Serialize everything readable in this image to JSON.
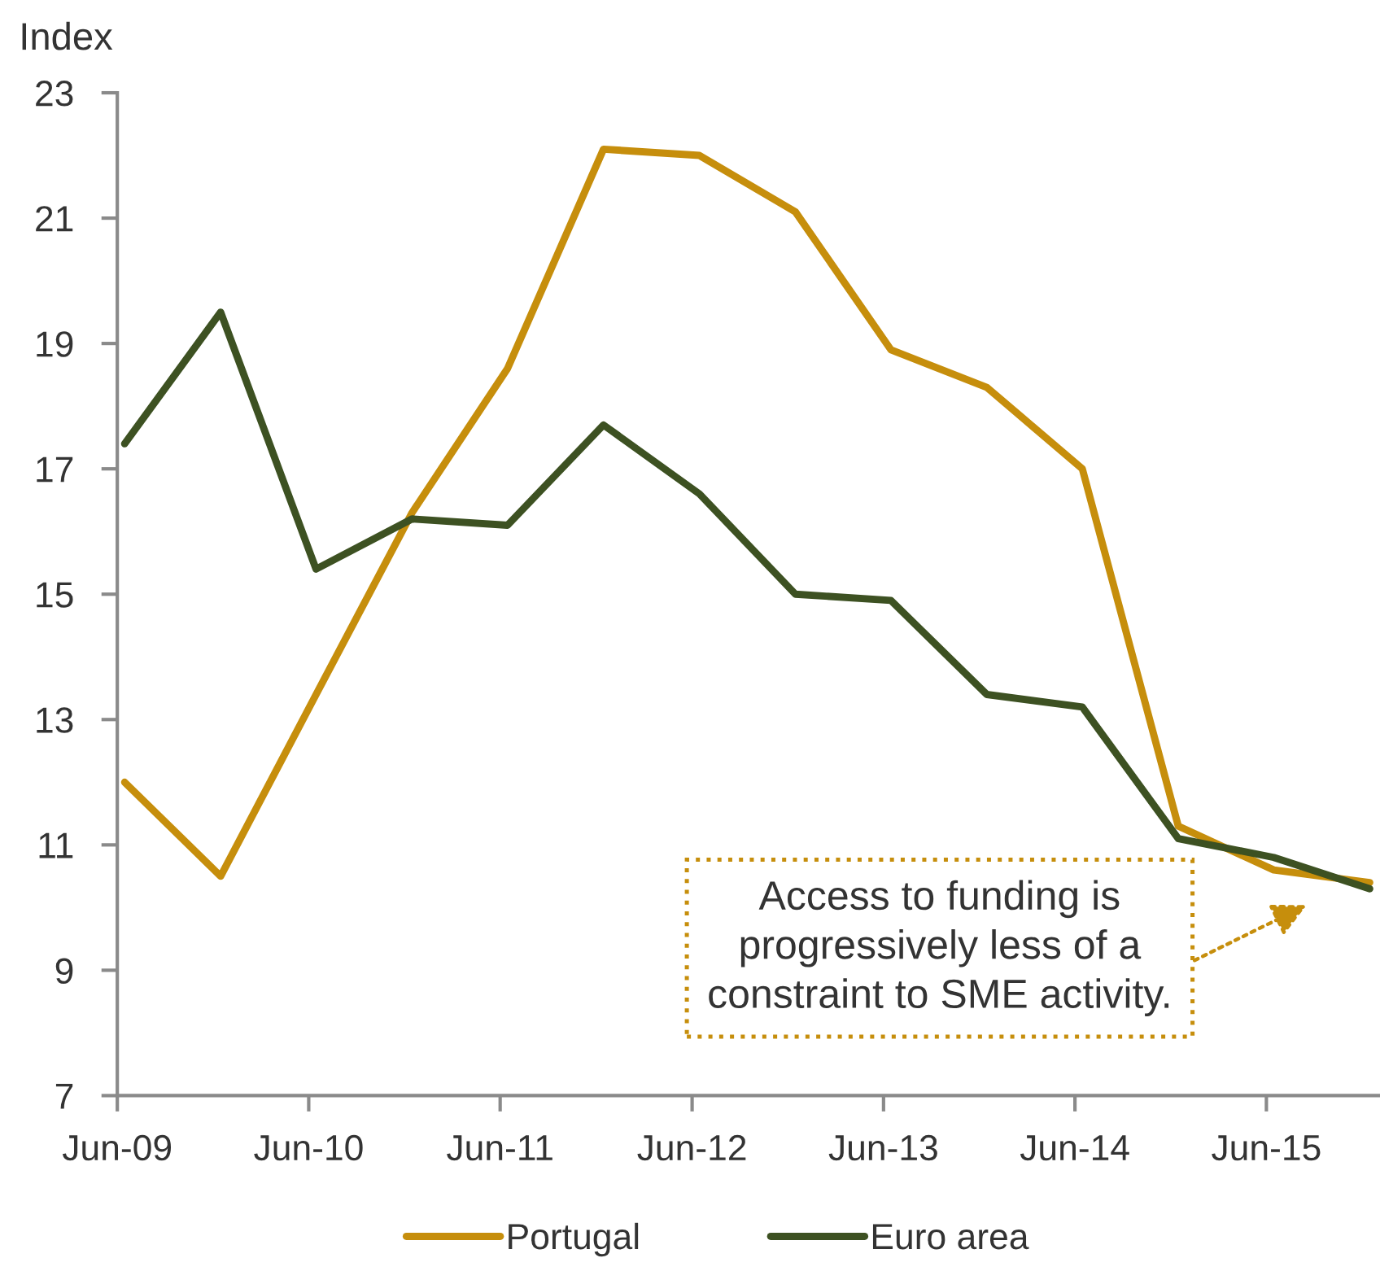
{
  "chart_data": {
    "type": "line",
    "ylabel": "Index",
    "x": [
      "2009-06-15",
      "2009-12-15",
      "2010-06-15",
      "2010-12-15",
      "2011-06-15",
      "2011-12-15",
      "2012-06-15",
      "2012-12-15",
      "2013-06-15",
      "2013-12-15",
      "2014-06-15",
      "2014-12-15",
      "2015-06-15",
      "2015-12-15"
    ],
    "series": [
      {
        "name": "Portugal",
        "color": "#c68e0c",
        "values": [
          12.0,
          10.5,
          13.4,
          16.3,
          18.6,
          22.1,
          22.0,
          21.1,
          18.9,
          18.3,
          17.0,
          11.3,
          10.6,
          10.4
        ]
      },
      {
        "name": "Euro area",
        "color": "#3d5122",
        "values": [
          17.4,
          19.5,
          15.4,
          16.2,
          16.1,
          17.7,
          16.6,
          15.0,
          14.9,
          13.4,
          13.2,
          11.1,
          10.8,
          10.3
        ]
      }
    ],
    "xlim": [
      "2009-06-01",
      "2016-01-01"
    ],
    "xticks": [
      {
        "value": "2009-06-01",
        "label": "Jun-09"
      },
      {
        "value": "2010-06-01",
        "label": "Jun-10"
      },
      {
        "value": "2011-06-01",
        "label": "Jun-11"
      },
      {
        "value": "2012-06-01",
        "label": "Jun-12"
      },
      {
        "value": "2013-06-01",
        "label": "Jun-13"
      },
      {
        "value": "2014-06-01",
        "label": "Jun-14"
      },
      {
        "value": "2015-06-01",
        "label": "Jun-15"
      }
    ],
    "ylim": [
      7,
      23
    ],
    "yticks": [
      7,
      9,
      11,
      13,
      15,
      17,
      19,
      21,
      23
    ],
    "annotations": [
      "Access to funding is\nprogressively less of a\nconstraint to SME activity."
    ],
    "legend": "bottom"
  }
}
